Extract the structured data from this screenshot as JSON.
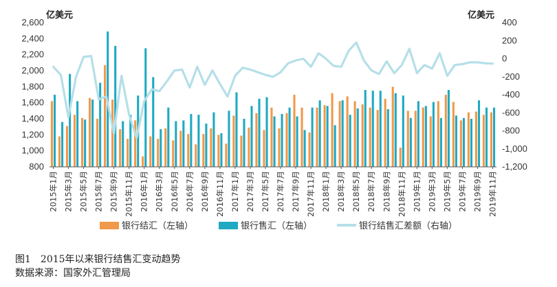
{
  "units": {
    "left": "亿美元",
    "right": "亿美元"
  },
  "caption": {
    "title": "图1　2015年以来银行结售汇变动趋势",
    "source": "数据来源：国家外汇管理局"
  },
  "colors": {
    "settlement": "#F0994A",
    "sales": "#1FA9C2",
    "balance": "#B5DFE8",
    "axis": "#555555"
  },
  "chart_data": {
    "type": "bar",
    "x": [
      "2015年1月",
      "2015年2月",
      "2015年3月",
      "2015年4月",
      "2015年5月",
      "2015年6月",
      "2015年7月",
      "2015年8月",
      "2015年9月",
      "2015年10月",
      "2015年11月",
      "2015年12月",
      "2016年1月",
      "2016年2月",
      "2016年3月",
      "2016年4月",
      "2016年5月",
      "2016年6月",
      "2016年7月",
      "2016年8月",
      "2016年9月",
      "2016年10月",
      "2016年11月",
      "2016年12月",
      "2017年1月",
      "2017年2月",
      "2017年3月",
      "2017年4月",
      "2017年5月",
      "2017年6月",
      "2017年7月",
      "2017年8月",
      "2017年9月",
      "2017年10月",
      "2017年11月",
      "2017年12月",
      "2018年1月",
      "2018年2月",
      "2018年3月",
      "2018年4月",
      "2018年5月",
      "2018年6月",
      "2018年7月",
      "2018年8月",
      "2018年9月",
      "2018年10月",
      "2018年11月",
      "2018年12月",
      "2019年1月",
      "2019年2月",
      "2019年3月",
      "2019年4月",
      "2019年5月",
      "2019年6月",
      "2019年7月",
      "2019年8月",
      "2019年9月",
      "2019年10月",
      "2019年11月"
    ],
    "x_tick_labels": [
      "2015年1月",
      "2015年3月",
      "2015年5月",
      "2015年7月",
      "2015年9月",
      "2015年11月",
      "2016年1月",
      "2016年3月",
      "2016年5月",
      "2016年7月",
      "2016年9月",
      "2016年11月",
      "2017年1月",
      "2017年3月",
      "2017年5月",
      "2017年7月",
      "2017年9月",
      "2017年11月",
      "2018年1月",
      "2018年3月",
      "2018年5月",
      "2018年7月",
      "2018年9月",
      "2018年11月",
      "2019年1月",
      "2019年3月",
      "2019年5月",
      "2019年7月",
      "2019年9月",
      "2019年11月"
    ],
    "left_axis": {
      "ylim": [
        800,
        2600
      ],
      "ticks": [
        "800",
        "1,000",
        "1,200",
        "1,400",
        "1,600",
        "1,800",
        "2,000",
        "2,200",
        "2,400",
        "2,600"
      ]
    },
    "right_axis": {
      "ylim": [
        -1200,
        400
      ],
      "ticks": [
        "-1,200",
        "-1,000",
        "-800",
        "-600",
        "-400",
        "-200",
        "0",
        "200",
        "400"
      ]
    },
    "series": [
      {
        "name": "银行结汇（左轴）",
        "type": "bar",
        "axis": "left",
        "values": [
          1620,
          1180,
          1310,
          1450,
          1410,
          1660,
          1400,
          2070,
          1640,
          1270,
          1150,
          1380,
          930,
          1180,
          1150,
          1280,
          1130,
          1250,
          1210,
          1080,
          1210,
          1280,
          1200,
          1090,
          1440,
          1190,
          1290,
          1470,
          1260,
          1540,
          1280,
          1470,
          1700,
          1540,
          1230,
          1540,
          1570,
          1720,
          1620,
          1680,
          1620,
          1580,
          1540,
          1510,
          1650,
          1800,
          1040,
          1500,
          1500,
          1540,
          1430,
          1620,
          1700,
          1610,
          1380,
          1480,
          1490,
          1450,
          1480
        ]
      },
      {
        "name": "银行售汇（左轴）",
        "type": "bar",
        "axis": "left",
        "values": [
          1700,
          1360,
          1960,
          1620,
          1390,
          1640,
          1850,
          2490,
          2310,
          1370,
          1450,
          1690,
          2280,
          1920,
          1270,
          1540,
          1370,
          1380,
          1460,
          1450,
          1340,
          1480,
          1220,
          1500,
          1730,
          1400,
          1560,
          1650,
          1670,
          1430,
          1460,
          1540,
          1430,
          1260,
          1540,
          1630,
          1560,
          1320,
          1630,
          1450,
          1530,
          1760,
          1750,
          1750,
          1520,
          1720,
          1690,
          1410,
          1620,
          1560,
          1610,
          1410,
          1760,
          1440,
          1410,
          1400,
          1630,
          1540,
          1540
        ]
      },
      {
        "name": "银行结售汇差额（右轴）",
        "type": "line",
        "axis": "right",
        "values": [
          -90,
          -180,
          -650,
          -200,
          20,
          30,
          -450,
          -420,
          -830,
          -190,
          -620,
          -880,
          -470,
          -340,
          -360,
          -250,
          -130,
          -120,
          -320,
          -90,
          -290,
          -130,
          -280,
          -420,
          -190,
          -100,
          -120,
          -150,
          -180,
          -200,
          -150,
          -50,
          -20,
          0,
          -90,
          60,
          0,
          -80,
          -90,
          90,
          180,
          -20,
          -130,
          -170,
          -30,
          -160,
          -70,
          110,
          -160,
          -70,
          -110,
          60,
          -190,
          -70,
          -60,
          -40,
          -40,
          -50,
          -55
        ]
      }
    ]
  }
}
